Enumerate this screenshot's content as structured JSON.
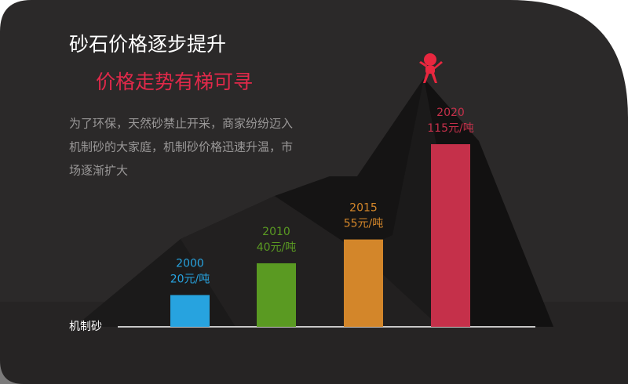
{
  "chart_data": {
    "type": "bar",
    "title": "砂石价格逐步提升",
    "subtitle": "价格走势有梯可寻",
    "description": [
      "为了环保，天然砂禁止开采，商家纷纷迈入",
      "机制砂的大家庭，机制砂价格迅速升温，市",
      "场逐渐扩大"
    ],
    "x_label": "机制砂",
    "categories": [
      "2000",
      "2010",
      "2015",
      "2020"
    ],
    "values": [
      20,
      40,
      55,
      115
    ],
    "value_labels": [
      "20元/吨",
      "40元/吨",
      "55元/吨",
      "115元/吨"
    ],
    "colors": [
      "#27a3df",
      "#5a9a22",
      "#d3862a",
      "#c5304a"
    ]
  }
}
